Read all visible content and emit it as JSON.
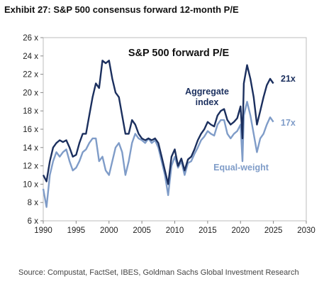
{
  "header": {
    "exhibit_title": "Exhibit 27: S&P 500 consensus forward 12-month P/E"
  },
  "footer": {
    "source": "Source: Compustat, FactSet, IBES, Goldman Sachs Global Investment Research"
  },
  "chart_data": {
    "type": "line",
    "title": "S&P 500 forward P/E",
    "xlim": [
      1990,
      2030
    ],
    "ylim": [
      6,
      26
    ],
    "x_ticks": [
      1990,
      1995,
      2000,
      2005,
      2010,
      2015,
      2020,
      2025,
      2030
    ],
    "x_tick_labels": [
      "1990",
      "1995",
      "2000",
      "2005",
      "2010",
      "2015",
      "2020",
      "2025",
      "2030"
    ],
    "y_ticks": [
      6,
      8,
      10,
      12,
      14,
      16,
      18,
      20,
      22,
      24,
      26
    ],
    "y_tick_labels": [
      "6 x",
      "8 x",
      "10 x",
      "12 x",
      "14 x",
      "16 x",
      "18 x",
      "20 x",
      "22 x",
      "24 x",
      "26 x"
    ],
    "grid": false,
    "legend": "inline labels",
    "colors": {
      "aggregate": "#1b2f5e",
      "equal_weight": "#7f9cc8"
    },
    "series": [
      {
        "name": "Aggregate index",
        "label_lines": [
          "Aggregate",
          "index"
        ],
        "end_label": "21x",
        "x": [
          1990.0,
          1990.5,
          1991.0,
          1991.5,
          1992.0,
          1992.5,
          1993.0,
          1993.5,
          1994.0,
          1994.5,
          1995.0,
          1995.5,
          1996.0,
          1996.5,
          1997.0,
          1997.5,
          1998.0,
          1998.5,
          1999.0,
          1999.5,
          2000.0,
          2000.5,
          2001.0,
          2001.5,
          2002.0,
          2002.5,
          2003.0,
          2003.5,
          2004.0,
          2004.5,
          2005.0,
          2005.5,
          2006.0,
          2006.5,
          2007.0,
          2007.5,
          2008.0,
          2008.5,
          2009.0,
          2009.5,
          2010.0,
          2010.5,
          2011.0,
          2011.5,
          2012.0,
          2012.5,
          2013.0,
          2013.5,
          2014.0,
          2014.5,
          2015.0,
          2015.5,
          2016.0,
          2016.5,
          2017.0,
          2017.5,
          2018.0,
          2018.5,
          2019.0,
          2019.5,
          2020.0,
          2020.3,
          2020.5,
          2021.0,
          2021.5,
          2022.0,
          2022.5,
          2023.0,
          2023.5,
          2024.0,
          2024.5,
          2025.0
        ],
        "values": [
          11.0,
          10.3,
          12.5,
          14.0,
          14.5,
          14.8,
          14.6,
          14.8,
          14.0,
          13.0,
          13.2,
          14.5,
          15.5,
          15.5,
          17.5,
          19.5,
          21.0,
          20.5,
          23.5,
          23.2,
          23.5,
          21.5,
          20.0,
          19.5,
          17.5,
          15.5,
          15.5,
          17.0,
          16.5,
          15.5,
          15.0,
          14.8,
          15.0,
          14.8,
          15.0,
          14.5,
          13.0,
          11.5,
          10.0,
          13.0,
          13.8,
          12.0,
          12.8,
          11.5,
          12.7,
          13.0,
          13.8,
          14.8,
          15.5,
          16.0,
          16.8,
          16.5,
          16.3,
          17.5,
          18.0,
          18.2,
          17.0,
          16.5,
          16.8,
          17.2,
          18.5,
          15.0,
          21.0,
          23.0,
          21.5,
          19.5,
          16.5,
          18.0,
          19.5,
          20.8,
          21.5,
          21.0
        ]
      },
      {
        "name": "Equal-weight",
        "label_lines": [
          "Equal-weight"
        ],
        "end_label": "17x",
        "x": [
          1990.0,
          1990.5,
          1991.0,
          1991.5,
          1992.0,
          1992.5,
          1993.0,
          1993.5,
          1994.0,
          1994.5,
          1995.0,
          1995.5,
          1996.0,
          1996.5,
          1997.0,
          1997.5,
          1998.0,
          1998.5,
          1999.0,
          1999.5,
          2000.0,
          2000.5,
          2001.0,
          2001.5,
          2002.0,
          2002.5,
          2003.0,
          2003.5,
          2004.0,
          2004.5,
          2005.0,
          2005.5,
          2006.0,
          2006.5,
          2007.0,
          2007.5,
          2008.0,
          2008.5,
          2009.0,
          2009.5,
          2010.0,
          2010.5,
          2011.0,
          2011.5,
          2012.0,
          2012.5,
          2013.0,
          2013.5,
          2014.0,
          2014.5,
          2015.0,
          2015.5,
          2016.0,
          2016.5,
          2017.0,
          2017.5,
          2018.0,
          2018.5,
          2019.0,
          2019.5,
          2020.0,
          2020.3,
          2020.5,
          2021.0,
          2021.5,
          2022.0,
          2022.5,
          2023.0,
          2023.5,
          2024.0,
          2024.5,
          2025.0
        ],
        "values": [
          9.5,
          7.5,
          11.0,
          12.5,
          13.5,
          13.0,
          13.5,
          13.8,
          12.5,
          11.5,
          11.8,
          12.5,
          13.5,
          13.8,
          14.5,
          15.0,
          15.0,
          12.5,
          13.0,
          11.5,
          11.0,
          12.5,
          14.0,
          14.5,
          13.5,
          11.0,
          12.5,
          14.5,
          15.5,
          15.0,
          14.8,
          14.5,
          15.0,
          14.5,
          14.8,
          14.0,
          12.5,
          11.0,
          8.8,
          12.0,
          13.0,
          11.8,
          12.5,
          11.0,
          12.3,
          12.5,
          13.3,
          14.0,
          14.8,
          15.2,
          15.8,
          15.5,
          15.3,
          16.5,
          17.0,
          17.0,
          15.5,
          15.0,
          15.5,
          15.8,
          16.5,
          12.5,
          17.5,
          19.0,
          17.5,
          15.5,
          13.5,
          15.0,
          15.5,
          16.5,
          17.3,
          16.8
        ]
      }
    ]
  }
}
